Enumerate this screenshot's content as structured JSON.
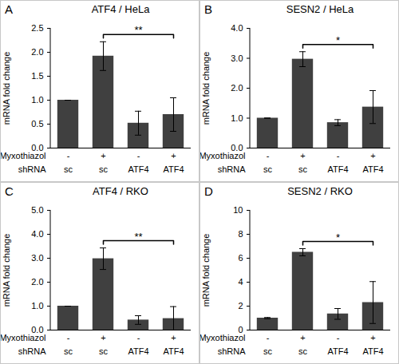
{
  "chart_data": [
    {
      "type": "bar",
      "panel_label": "A",
      "title": "ATF4 / HeLa",
      "y_label": "mRNA fold change",
      "x_label_rows": [
        {
          "name": "Myxothiazol",
          "labels": [
            "-",
            "+",
            "-",
            "+"
          ]
        },
        {
          "name": "shRNA",
          "labels": [
            "sc",
            "sc",
            "ATF4",
            "ATF4"
          ]
        }
      ],
      "values": [
        1,
        1.92,
        0.52,
        0.7
      ],
      "errors": [
        0,
        0.3,
        0.25,
        0.35
      ],
      "color": "#404040",
      "ylim": [
        0,
        2.5
      ],
      "yticks": [
        0,
        0.5,
        1,
        1.5,
        2,
        2.5
      ],
      "annotations": [
        {
          "from": 1,
          "to": 3,
          "text": "**"
        }
      ]
    },
    {
      "type": "bar",
      "panel_label": "B",
      "title": "SESN2 / HeLa",
      "y_label": "mRNA fold change",
      "x_label_rows": [
        {
          "name": "Myxothiazol",
          "labels": [
            "-",
            "+",
            "-",
            "+"
          ]
        },
        {
          "name": "shRNA",
          "labels": [
            "sc",
            "sc",
            "ATF4",
            "ATF4"
          ]
        }
      ],
      "values": [
        1,
        2.97,
        0.85,
        1.37
      ],
      "errors": [
        0,
        0.25,
        0.1,
        0.55
      ],
      "color": "#404040",
      "ylim": [
        0,
        4
      ],
      "yticks": [
        0,
        1,
        2,
        3,
        4
      ],
      "annotations": [
        {
          "from": 1,
          "to": 3,
          "text": "*"
        }
      ]
    },
    {
      "type": "bar",
      "panel_label": "C",
      "title": "ATF4 / RKO",
      "y_label": "mRNA fold change",
      "x_label_rows": [
        {
          "name": "Myxothiazol",
          "labels": [
            "-",
            "+",
            "-",
            "+"
          ]
        },
        {
          "name": "shRNA",
          "labels": [
            "sc",
            "sc",
            "ATF4",
            "ATF4"
          ]
        }
      ],
      "values": [
        1,
        2.98,
        0.42,
        0.48
      ],
      "errors": [
        0,
        0.45,
        0.18,
        0.5
      ],
      "color": "#404040",
      "ylim": [
        0,
        5
      ],
      "yticks": [
        0,
        1,
        2,
        3,
        4,
        5
      ],
      "annotations": [
        {
          "from": 1,
          "to": 3,
          "text": "**"
        }
      ]
    },
    {
      "type": "bar",
      "panel_label": "D",
      "title": "SESN2 / RKO",
      "y_label": "mRNA fold change",
      "x_label_rows": [
        {
          "name": "Myxothiazol",
          "labels": [
            "-",
            "+",
            "-",
            "+"
          ]
        },
        {
          "name": "shRNA",
          "labels": [
            "sc",
            "sc",
            "ATF4",
            "ATF4"
          ]
        }
      ],
      "values": [
        1,
        6.5,
        1.35,
        2.3
      ],
      "errors": [
        0.05,
        0.3,
        0.45,
        1.75
      ],
      "color": "#404040",
      "ylim": [
        0,
        10
      ],
      "yticks": [
        0,
        2,
        4,
        6,
        8,
        10
      ],
      "annotations": [
        {
          "from": 1,
          "to": 3,
          "text": "*"
        }
      ]
    }
  ]
}
